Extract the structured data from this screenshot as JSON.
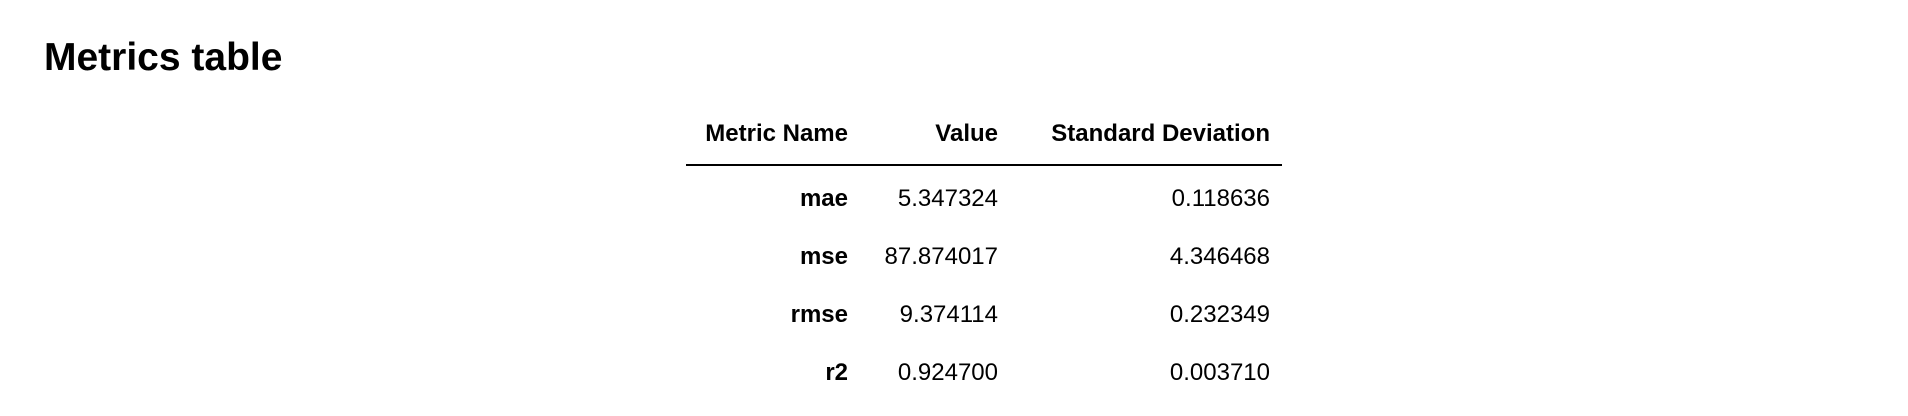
{
  "title": "Metrics table",
  "table": {
    "headers": [
      "Metric Name",
      "Value",
      "Standard Deviation"
    ],
    "rows": [
      {
        "name": "mae",
        "value": "5.347324",
        "std": "0.118636"
      },
      {
        "name": "mse",
        "value": "87.874017",
        "std": "4.346468"
      },
      {
        "name": "rmse",
        "value": "9.374114",
        "std": "0.232349"
      },
      {
        "name": "r2",
        "value": "0.924700",
        "std": "0.003710"
      }
    ]
  }
}
